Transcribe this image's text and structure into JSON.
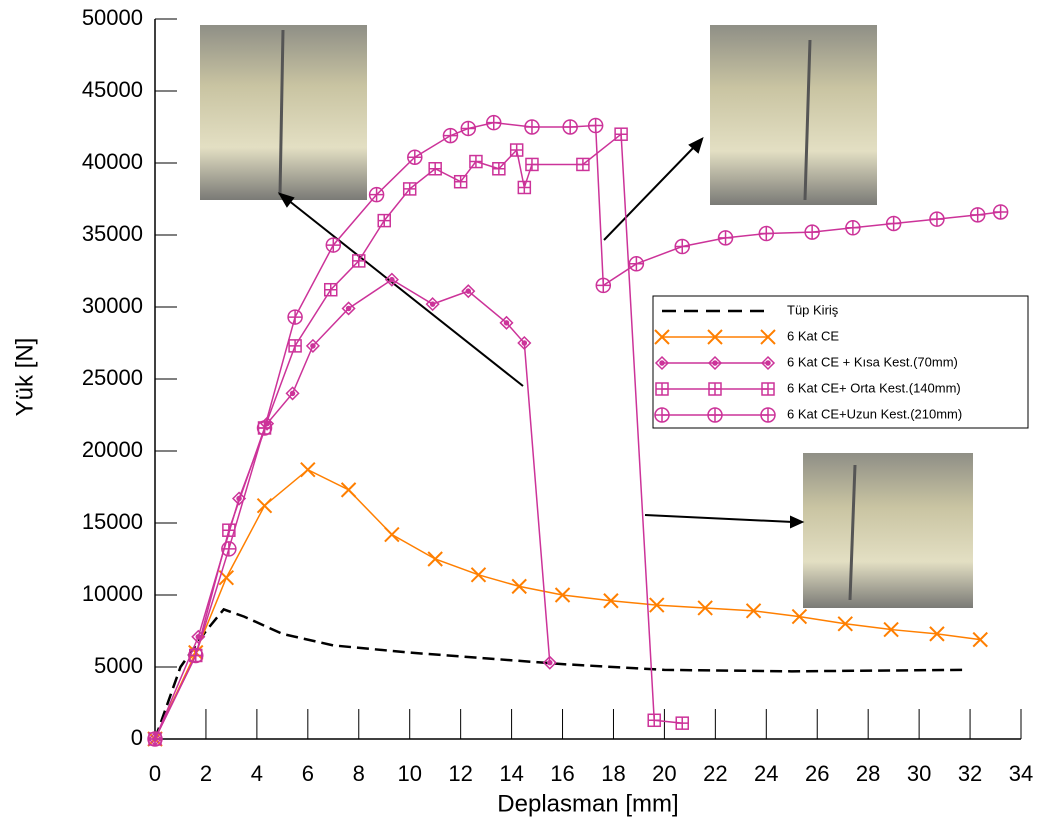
{
  "chart_data": {
    "type": "line",
    "x_label": "Deplasman [mm]",
    "y_label": "Yük [N]",
    "xlim": [
      0,
      34
    ],
    "ylim": [
      0,
      50000
    ],
    "xticks": [
      0,
      2,
      4,
      6,
      8,
      10,
      12,
      14,
      16,
      18,
      20,
      22,
      24,
      26,
      28,
      30,
      32,
      34
    ],
    "yticks": [
      0,
      5000,
      10000,
      15000,
      20000,
      25000,
      30000,
      35000,
      40000,
      45000,
      50000
    ],
    "series": [
      {
        "name": "Tüp Kiriş",
        "color": "#000000",
        "marker": "none",
        "dash": true,
        "x": [
          0,
          1,
          2,
          2.7,
          3.5,
          5,
          7,
          10,
          13,
          16,
          20,
          25,
          31.7
        ],
        "values": [
          0,
          5000,
          7500,
          9000,
          8500,
          7300,
          6500,
          6000,
          5600,
          5200,
          4800,
          4700,
          4800
        ]
      },
      {
        "name": "6 Kat CE",
        "color": "#ff7f00",
        "marker": "x",
        "dash": false,
        "x": [
          0,
          1.6,
          2.8,
          4.3,
          6,
          7.6,
          9.3,
          11,
          12.7,
          14.3,
          16,
          17.9,
          19.7,
          21.6,
          23.5,
          25.3,
          27.1,
          28.9,
          30.7,
          32.4
        ],
        "values": [
          0,
          6000,
          11200,
          16200,
          18700,
          17300,
          14200,
          12500,
          11400,
          10600,
          10000,
          9600,
          9300,
          9100,
          8900,
          8500,
          8000,
          7600,
          7300,
          6900
        ]
      },
      {
        "name": "6 Kat CE + Kısa Kest.(70mm)",
        "color": "#cc3399",
        "marker": "diamond",
        "dash": false,
        "x": [
          0,
          1.7,
          3.3,
          4.4,
          5.4,
          6.2,
          7.6,
          9.3,
          10.9,
          12.3,
          13.8,
          14.5,
          15.5
        ],
        "values": [
          0,
          7100,
          16700,
          21900,
          24000,
          27300,
          29900,
          31900,
          30200,
          31100,
          28900,
          27500,
          5300
        ]
      },
      {
        "name": "6 Kat CE+ Orta Kest.(140mm)",
        "color": "#cc3399",
        "marker": "square",
        "dash": false,
        "x": [
          0,
          1.6,
          2.9,
          4.3,
          5.5,
          6.9,
          8.0,
          9.0,
          10,
          11,
          12,
          12.6,
          13.5,
          14.2,
          14.5,
          14.8,
          16.8,
          18.3,
          19.6,
          20.7
        ],
        "values": [
          0,
          5800,
          14500,
          21600,
          27300,
          31200,
          33200,
          36000,
          38200,
          39600,
          38700,
          40100,
          39600,
          40900,
          38300,
          39900,
          39900,
          42000,
          1300,
          1100
        ]
      },
      {
        "name": "6 Kat CE+Uzun Kest.(210mm)",
        "color": "#cc3399",
        "marker": "circle",
        "dash": false,
        "x": [
          0,
          1.6,
          2.9,
          4.3,
          5.5,
          7,
          8.7,
          10.2,
          11.6,
          12.3,
          13.3,
          14.8,
          16.3,
          17.3,
          17.6,
          18.9,
          20.7,
          22.4,
          24,
          25.8,
          27.4,
          29,
          30.7,
          32.3,
          33.2
        ],
        "values": [
          0,
          5800,
          13200,
          21600,
          29300,
          34300,
          37800,
          40400,
          41900,
          42400,
          42800,
          42500,
          42500,
          42600,
          31500,
          33000,
          34200,
          34800,
          35100,
          35200,
          35500,
          35800,
          36100,
          36400,
          36600
        ]
      }
    ]
  }
}
